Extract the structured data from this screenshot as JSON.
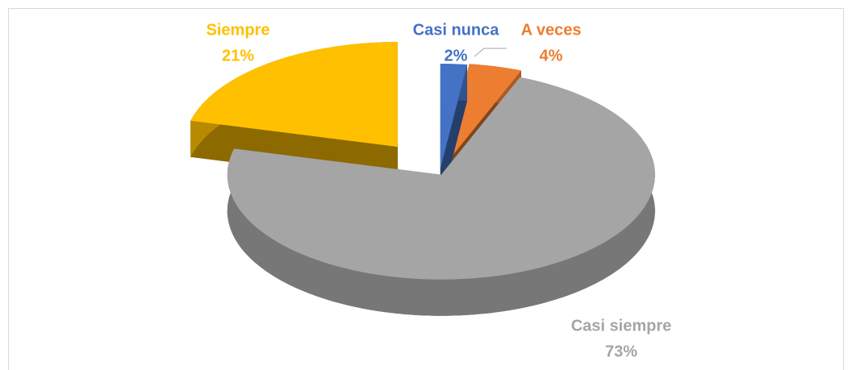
{
  "chart_data": {
    "type": "pie",
    "categories": [
      "Casi nunca",
      "A veces",
      "Casi siempre",
      "Siempre"
    ],
    "values": [
      2,
      4,
      73,
      21
    ],
    "value_labels": [
      "2%",
      "4%",
      "73%",
      "21%"
    ],
    "colors": [
      "#4472c4",
      "#ed7d31",
      "#a5a5a5",
      "#ffc000"
    ]
  }
}
